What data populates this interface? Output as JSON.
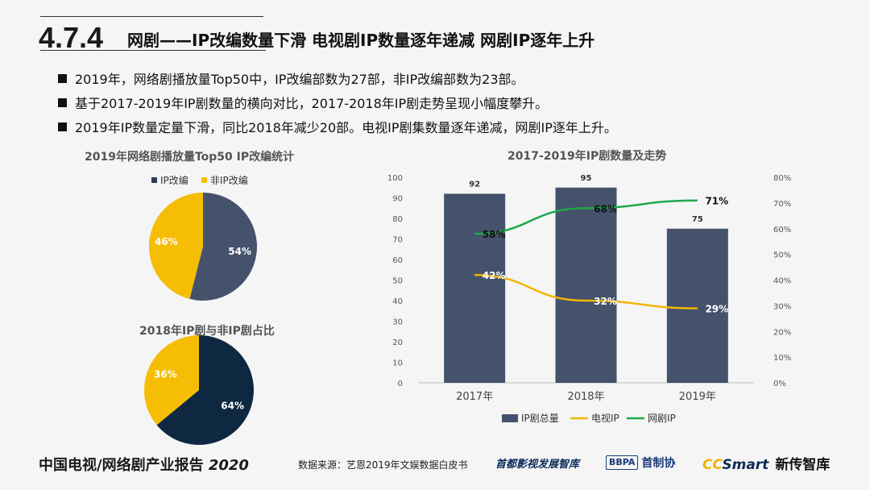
{
  "header": {
    "section_number": "4.7.4",
    "title": "网剧——IP改编数量下滑  电视剧IP数量逐年递减   网剧IP逐年上升"
  },
  "bullets": [
    "2019年，网络剧播放量Top50中，IP改编部数为27部，非IP改编部数为23部。",
    "基于2017-2019年IP剧数量的横向对比，2017-2018年IP剧走势呈现小幅度攀升。",
    "2019年IP数量定量下滑，同比2018年减少20部。电视IP剧集数量逐年递减，网剧IP逐年上升。"
  ],
  "colors": {
    "navy": "#2d3b55",
    "dark_navy": "#0f2842",
    "yellow": "#f5bd04",
    "slate": "#44526b",
    "green": "#1fa84a",
    "gold_line": "#f2b705"
  },
  "pie1": {
    "title": "2019年网络剧播放量Top50 IP改编统计",
    "legend": [
      "IP改编",
      "非IP改编"
    ],
    "slices": [
      {
        "label": "54%",
        "value": 54
      },
      {
        "label": "46%",
        "value": 46
      }
    ]
  },
  "pie2": {
    "title": "2018年IP剧与非IP剧占比",
    "slices": [
      {
        "label": "64%",
        "value": 64
      },
      {
        "label": "36%",
        "value": 36
      }
    ]
  },
  "chart_data": {
    "type": "bar",
    "title": "2017-2019年IP剧数量及走势",
    "categories": [
      "2017年",
      "2018年",
      "2019年"
    ],
    "series": [
      {
        "name": "IP剧总量",
        "type": "bar",
        "axis": "left",
        "values": [
          92,
          95,
          75
        ],
        "labels": [
          "92",
          "95",
          "75"
        ]
      },
      {
        "name": "电视IP",
        "type": "line",
        "axis": "right",
        "values": [
          42,
          32,
          29
        ],
        "labels": [
          "42%",
          "32%",
          "29%"
        ]
      },
      {
        "name": "网剧IP",
        "type": "line",
        "axis": "right",
        "values": [
          58,
          68,
          71
        ],
        "labels": [
          "58%",
          "68%",
          "71%"
        ]
      }
    ],
    "left_ticks": [
      "100",
      "90",
      "80",
      "70",
      "60",
      "50",
      "40",
      "30",
      "20",
      "10",
      "0"
    ],
    "right_ticks": [
      "80%",
      "70%",
      "60%",
      "50%",
      "40%",
      "30%",
      "20%",
      "10%",
      "0%"
    ],
    "ylim_left": [
      0,
      100
    ],
    "ylim_right": [
      0,
      80
    ],
    "legend_position": "bottom"
  },
  "footer": {
    "report_title": "中国电视/网络剧产业报告",
    "report_year": "2020",
    "source": "数据来源：艺恩2019年文娱数据白皮书",
    "logo1": "首都影视发展智库",
    "logo2_badge": "BBPA",
    "logo2_text": "首制协",
    "logo3_cc": "CC",
    "logo3_smart": "Smart",
    "logo3_cn": "新传智库"
  }
}
